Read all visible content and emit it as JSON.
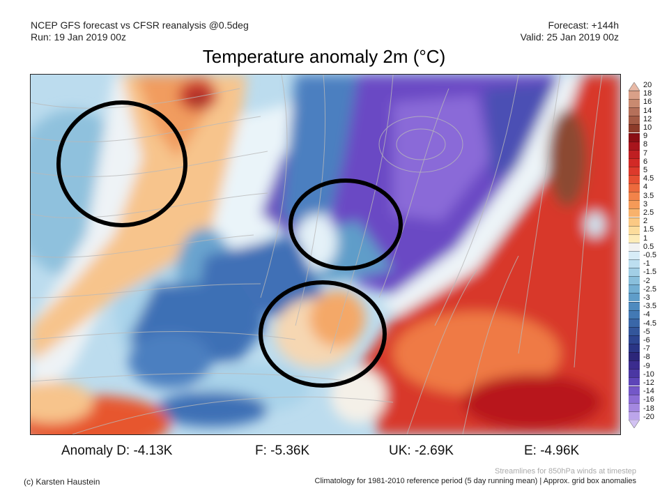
{
  "header": {
    "model_line": "NCEP GFS forecast vs CFSR reanalysis @0.5deg",
    "run_line": "Run: 19 Jan 2019 00z",
    "forecast_line": "Forecast: +144h",
    "valid_line": "Valid: 25 Jan 2019 00z"
  },
  "title": "Temperature anomaly 2m (°C)",
  "map": {
    "region": "Europe / North Atlantic",
    "variable": "2m temperature anomaly",
    "overlay": "850hPa wind streamlines",
    "annotations": [
      "circle",
      "circle",
      "circle"
    ]
  },
  "colorbar": {
    "labels": [
      "20",
      "18",
      "16",
      "14",
      "12",
      "10",
      "9",
      "8",
      "7",
      "6",
      "5",
      "4.5",
      "4",
      "3.5",
      "3",
      "2.5",
      "2",
      "1.5",
      "1",
      "0.5",
      "-0.5",
      "-1",
      "-1.5",
      "-2",
      "-2.5",
      "-3",
      "-3.5",
      "-4",
      "-4.5",
      "-5",
      "-6",
      "-7",
      "-8",
      "-9",
      "-10",
      "-12",
      "-14",
      "-16",
      "-18",
      "-20"
    ],
    "colors": [
      "#e8b9a6",
      "#d9a088",
      "#c98a70",
      "#b5705a",
      "#a35a45",
      "#8c3b2a",
      "#8a0f14",
      "#a8151c",
      "#bf1f22",
      "#d22a26",
      "#dd3a2c",
      "#e54f32",
      "#ec6a3d",
      "#f2834a",
      "#f59a58",
      "#f8b26c",
      "#fbc984",
      "#fcdc9c",
      "#fdebb8",
      "#f2f2f2",
      "#d7ecf7",
      "#bddff0",
      "#a2cfe6",
      "#89bfdc",
      "#73afd3",
      "#5f9dc9",
      "#4f8bbf",
      "#4379b4",
      "#3a67a8",
      "#33569b",
      "#2d4590",
      "#2a3585",
      "#2c2679",
      "#3b2c8e",
      "#4b37a3",
      "#5d45b8",
      "#7457c8",
      "#8c6dd5",
      "#a488e0",
      "#bca5ea",
      "#d2c2f2"
    ]
  },
  "stats": {
    "d": "Anomaly D: -4.13K",
    "f": "F: -5.36K",
    "uk": "UK: -2.69K",
    "e": "E: -4.96K"
  },
  "footer": {
    "credit": "(c) Karsten Haustein",
    "streamlines_note": "Streamlines for 850hPa winds at timestep",
    "climatology_note": "Climatology for 1981-2010 reference period (5 day running mean) | Approx. grid box anomalies"
  }
}
